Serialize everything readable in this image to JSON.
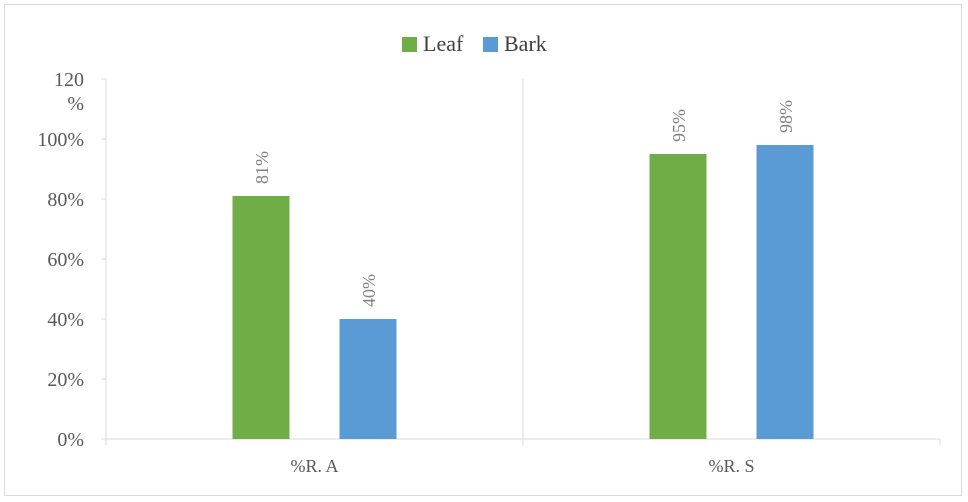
{
  "chart_data": {
    "type": "bar",
    "categories": [
      "%R. A",
      "%R. S"
    ],
    "series": [
      {
        "name": "Leaf",
        "values": [
          81,
          95
        ],
        "labels": [
          "81%",
          "95%"
        ],
        "color": "#70ad47"
      },
      {
        "name": "Bark",
        "values": [
          40,
          98
        ],
        "labels": [
          "40%",
          "98%"
        ],
        "color": "#5b9bd5"
      }
    ],
    "yticks": [
      {
        "value": 0,
        "label": "0%"
      },
      {
        "value": 20,
        "label": "20%"
      },
      {
        "value": 40,
        "label": "40%"
      },
      {
        "value": 60,
        "label": "60%"
      },
      {
        "value": 80,
        "label": "80%"
      },
      {
        "value": 100,
        "label": "100%"
      },
      {
        "value": 120,
        "label": "120\n%"
      }
    ],
    "ylim": [
      0,
      120
    ],
    "legend_position": "top",
    "grid": false,
    "title": "",
    "xlabel": "",
    "ylabel": ""
  }
}
